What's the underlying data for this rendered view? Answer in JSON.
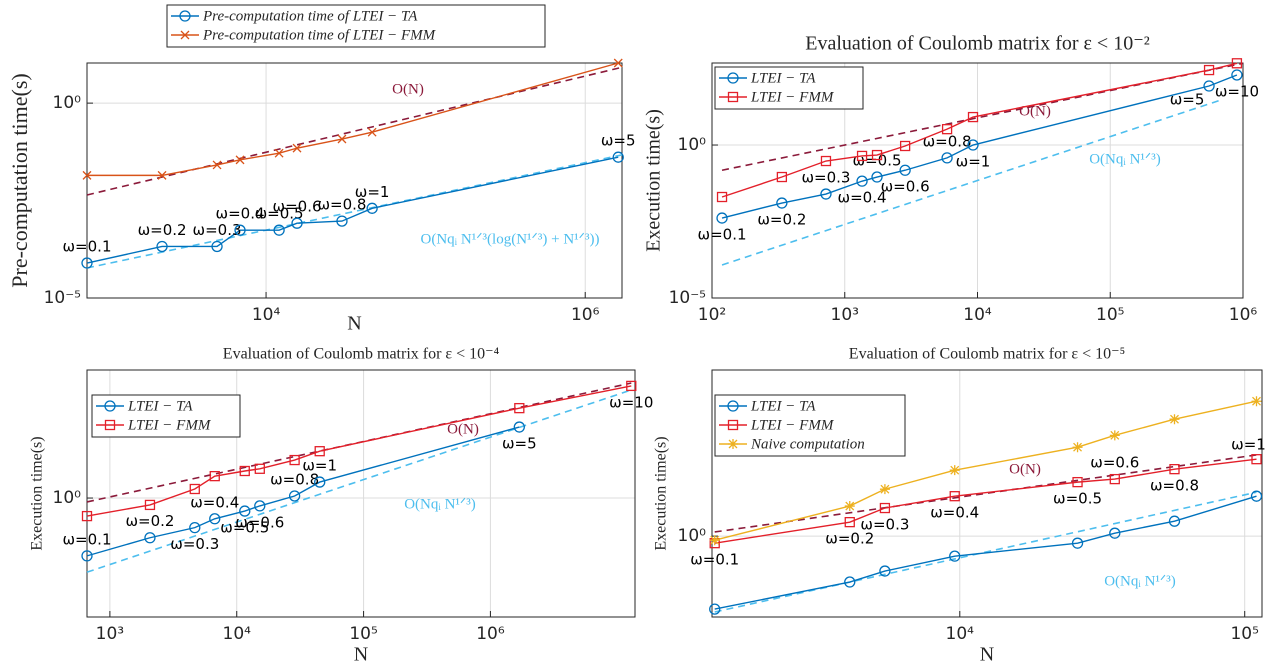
{
  "chart_data": [
    {
      "type": "line",
      "xlabel": "N",
      "ylabel": "Pre-computation time(s)",
      "xscale": "log",
      "yscale": "log",
      "xlim": [
        755,
        1700000
      ],
      "ylim": [
        1e-05,
        10.7
      ],
      "xticks": [
        {
          "value": 10000,
          "label": "10⁴"
        },
        {
          "value": 1000000,
          "label": "10⁶"
        }
      ],
      "yticks": [
        {
          "value": 1e-05,
          "label": "10⁻⁵"
        },
        {
          "value": 1,
          "label": "10⁰"
        }
      ],
      "grid": true,
      "legend": "outside top",
      "series": [
        {
          "name": "Pre-computation time of LTEI − TA",
          "color": "#0072bd",
          "marker": "o",
          "x": [
            755,
            2230,
            4930,
            6870,
            12070,
            15630,
            29900,
            46200,
            1610000
          ],
          "values": [
            7.9e-05,
            0.00021,
            0.00021,
            0.00055,
            0.00055,
            0.00083,
            0.00094,
            0.002,
            0.041
          ],
          "point_labels": [
            "ω=0.1",
            "ω=0.2",
            "ω=0.3",
            "ω=0.4",
            "ω=0.5",
            "ω=0.6",
            "ω=0.8",
            "ω=1",
            "ω=5"
          ]
        },
        {
          "name": "Pre-computation time of LTEI − FMM",
          "color": "#d95319",
          "marker": "x",
          "x": [
            755,
            2230,
            4930,
            6870,
            12070,
            15630,
            29900,
            46200,
            1610000
          ],
          "values": [
            0.014,
            0.014,
            0.026,
            0.035,
            0.052,
            0.07,
            0.12,
            0.18,
            10.7
          ]
        }
      ],
      "reference_lines": [
        {
          "label": "O(N)",
          "color": "#8b1a3a",
          "x": [
            755,
            1700000
          ],
          "values": [
            0.0044,
            8.3
          ]
        },
        {
          "label": "O(Nqᵢ N¹ᐟ³(log(N¹ᐟ³) + N¹ᐟ³))",
          "color": "#4dbeee",
          "x": [
            755,
            1700000
          ],
          "values": [
            5.9e-05,
            0.047
          ]
        }
      ]
    },
    {
      "type": "line",
      "title": "Evaluation of Coulomb matrix for ε < 10⁻²",
      "ylabel": "Execution time(s)",
      "xscale": "log",
      "yscale": "log",
      "xlim": [
        100,
        1000000
      ],
      "ylim": [
        1e-05,
        480
      ],
      "xticks": [
        {
          "value": 100,
          "label": "10²"
        },
        {
          "value": 1000,
          "label": "10³"
        },
        {
          "value": 10000,
          "label": "10⁴"
        },
        {
          "value": 100000,
          "label": "10⁵"
        },
        {
          "value": 1000000,
          "label": "10⁶"
        }
      ],
      "yticks": [
        {
          "value": 1e-05,
          "label": "10⁻⁵"
        },
        {
          "value": 1,
          "label": "10⁰"
        }
      ],
      "grid": true,
      "legend": "upper left",
      "series": [
        {
          "name": "LTEI − TA",
          "color": "#0072bd",
          "marker": "o",
          "x": [
            119,
            336,
            722,
            1350,
            1750,
            2850,
            5900,
            9250,
            555000,
            900000
          ],
          "values": [
            0.0041,
            0.0127,
            0.025,
            0.066,
            0.09,
            0.15,
            0.38,
            1.0,
            85,
            195
          ],
          "point_labels": [
            "ω=0.1",
            "ω=0.2",
            "ω=0.3",
            "ω=0.4",
            "ω=0.5",
            "ω=0.6",
            "ω=0.8",
            "ω=1",
            "ω=5",
            "ω=10"
          ]
        },
        {
          "name": "LTEI − FMM",
          "color": "#e3202a",
          "marker": "s",
          "x": [
            119,
            336,
            722,
            1350,
            1750,
            2850,
            5900,
            9250,
            555000,
            900000
          ],
          "values": [
            0.02,
            0.09,
            0.3,
            0.44,
            0.47,
            0.93,
            3.3,
            8.2,
            282,
            470
          ]
        }
      ],
      "reference_lines": [
        {
          "label": "O(N)",
          "color": "#8b1a3a",
          "x": [
            119,
            1000000
          ],
          "values": [
            0.15,
            470
          ]
        },
        {
          "label": "O(Nqᵢ N¹ᐟ³)",
          "color": "#4dbeee",
          "x": [
            119,
            680000
          ],
          "values": [
            0.00012,
            29.5
          ]
        }
      ]
    },
    {
      "type": "line",
      "title": "Evaluation of Coulomb matrix for ε < 10⁻⁴",
      "xlabel": "N",
      "ylabel": "Execution time(s)",
      "xscale": "log",
      "yscale": "log",
      "xlim": [
        660,
        13800000
      ],
      "ylim": [
        0.0069,
        212
      ],
      "xticks": [
        {
          "value": 1000,
          "label": "10³"
        },
        {
          "value": 10000,
          "label": "10⁴"
        },
        {
          "value": 100000,
          "label": "10⁵"
        },
        {
          "value": 1000000,
          "label": "10⁶"
        }
      ],
      "yticks": [
        {
          "value": 1,
          "label": "10⁰"
        }
      ],
      "grid": true,
      "legend": "upper left",
      "series": [
        {
          "name": "LTEI − TA",
          "color": "#0072bd",
          "marker": "o",
          "x": [
            660,
            2070,
            4670,
            6710,
            11570,
            15200,
            28600,
            45100,
            1690000
          ],
          "values": [
            0.089,
            0.19,
            0.29,
            0.42,
            0.58,
            0.72,
            1.09,
            1.95,
            19.5
          ],
          "point_labels": [
            "ω=0.1",
            "ω=0.2",
            "ω=0.3",
            "ω=0.4",
            "ω=0.5",
            "ω=0.6",
            "ω=0.8",
            "ω=1",
            "ω=5"
          ]
        },
        {
          "name": "LTEI − FMM",
          "color": "#e3202a",
          "marker": "s",
          "x": [
            660,
            2070,
            4670,
            6710,
            11570,
            15200,
            28600,
            45100,
            1690000,
            12900000
          ],
          "values": [
            0.47,
            0.75,
            1.46,
            2.5,
            3.1,
            3.4,
            4.9,
            7.1,
            43,
            109
          ],
          "point_labels": [
            null,
            null,
            null,
            null,
            null,
            null,
            null,
            null,
            null,
            "ω=10"
          ]
        }
      ],
      "reference_lines": [
        {
          "label": "O(N)",
          "color": "#8b1a3a",
          "x": [
            660,
            12900000
          ],
          "values": [
            0.85,
            123
          ]
        },
        {
          "label": "O(Nqᵢ N¹ᐟ³)",
          "color": "#4dbeee",
          "x": [
            660,
            12900000
          ],
          "values": [
            0.045,
            92
          ]
        }
      ]
    },
    {
      "type": "line",
      "title": "Evaluation of Coulomb matrix for ε < 10⁻⁵",
      "xlabel": "N",
      "ylabel": "Execution time(s)",
      "xscale": "log",
      "yscale": "log",
      "xlim": [
        1350,
        115000
      ],
      "ylim": [
        0.155,
        46
      ],
      "xticks": [
        {
          "value": 10000,
          "label": "10⁴"
        },
        {
          "value": 100000,
          "label": "10⁵"
        }
      ],
      "yticks": [
        {
          "value": 1,
          "label": "10⁰"
        }
      ],
      "grid": true,
      "legend": "upper left",
      "series": [
        {
          "name": "LTEI − TA",
          "color": "#0072bd",
          "marker": "o",
          "x": [
            1380,
            4110,
            5460,
            9600,
            25900,
            35000,
            56700,
            110000
          ],
          "values": [
            0.186,
            0.347,
            0.447,
            0.63,
            0.85,
            1.07,
            1.41,
            2.51
          ]
        },
        {
          "name": "LTEI − FMM",
          "color": "#e3202a",
          "marker": "s",
          "x": [
            1380,
            4110,
            5460,
            9600,
            25900,
            35000,
            56700,
            110000
          ],
          "values": [
            0.85,
            1.38,
            1.91,
            2.51,
            3.47,
            3.72,
            4.68,
            5.89
          ],
          "point_labels": [
            "ω=0.1",
            "ω=0.2",
            "ω=0.3",
            "ω=0.4",
            "ω=0.5",
            "ω=0.6",
            "ω=0.8",
            "ω=1"
          ]
        },
        {
          "name": "Naive computation",
          "color": "#edb120",
          "marker": "*",
          "x": [
            1380,
            4110,
            5460,
            9600,
            25900,
            35000,
            56700,
            110000
          ],
          "values": [
            0.91,
            2.0,
            2.95,
            4.57,
            7.76,
            10.2,
            14.8,
            22.4
          ]
        }
      ],
      "reference_lines": [
        {
          "label": "O(N)",
          "color": "#8b1a3a",
          "x": [
            1380,
            110000
          ],
          "values": [
            1.1,
            6.5
          ]
        },
        {
          "label": "O(Nqᵢ N¹ᐟ³)",
          "color": "#4dbeee",
          "x": [
            1380,
            110000
          ],
          "values": [
            0.174,
            2.75
          ]
        }
      ]
    }
  ]
}
